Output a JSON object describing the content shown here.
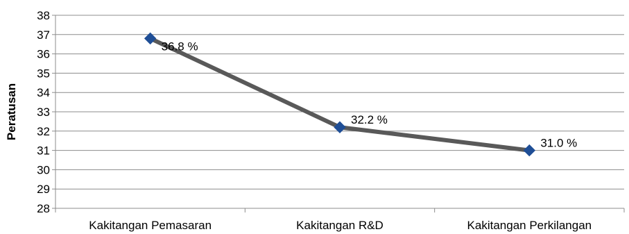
{
  "chart_data": {
    "type": "line",
    "categories": [
      "Kakitangan Pemasaran",
      "Kakitangan R&D",
      "Kakitangan Perkilangan"
    ],
    "series": [
      {
        "values": [
          36.8,
          32.2,
          31.0
        ],
        "data_labels": [
          "36.8 %",
          "32.2 %",
          "31.0 %"
        ],
        "line_color": "#595959",
        "marker_color": "#1F4E96",
        "marker": "diamond"
      }
    ],
    "title": "",
    "xlabel": "",
    "ylabel": "Peratusan",
    "ylim": [
      28,
      38
    ],
    "yticks": [
      28,
      29,
      30,
      31,
      32,
      33,
      34,
      35,
      36,
      37,
      38
    ],
    "grid": true,
    "legend": "none"
  }
}
